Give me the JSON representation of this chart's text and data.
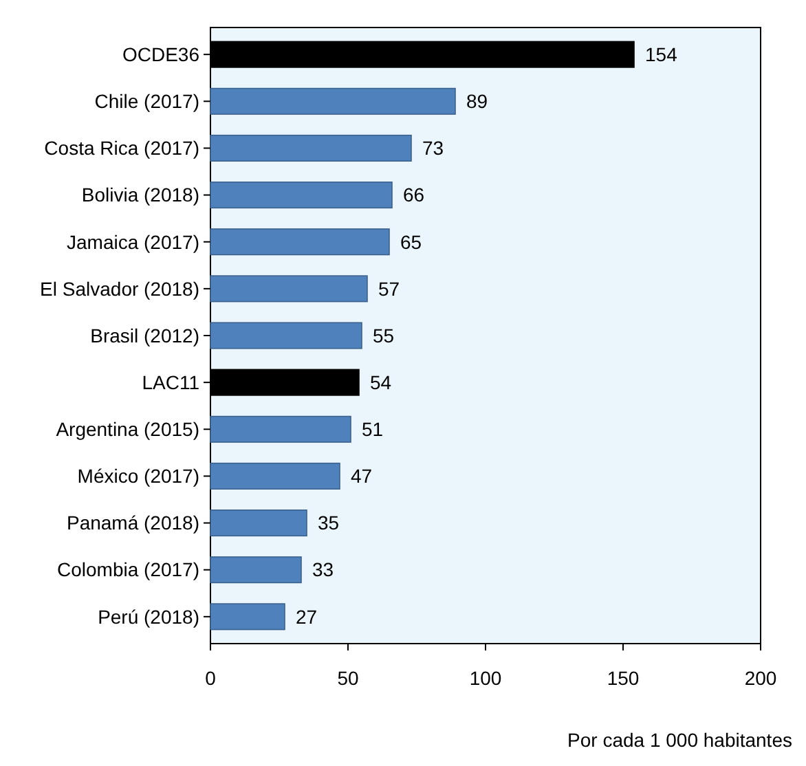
{
  "chart_data": {
    "type": "bar",
    "orientation": "horizontal",
    "xlabel": "Por cada 1 000 habitantes",
    "categories": [
      "OCDE36",
      "Chile (2017)",
      "Costa Rica (2017)",
      "Bolivia (2018)",
      "Jamaica (2017)",
      "El Salvador (2018)",
      "Brasil (2012)",
      "LAC11",
      "Argentina (2015)",
      "México (2017)",
      "Panamá (2018)",
      "Colombia (2017)",
      "Perú (2018)"
    ],
    "values": [
      154,
      89,
      73,
      66,
      65,
      57,
      55,
      54,
      51,
      47,
      35,
      33,
      27
    ],
    "colors": [
      "#000000",
      "#4f81bd",
      "#4f81bd",
      "#4f81bd",
      "#4f81bd",
      "#4f81bd",
      "#4f81bd",
      "#000000",
      "#4f81bd",
      "#4f81bd",
      "#4f81bd",
      "#4f81bd",
      "#4f81bd"
    ],
    "xlim": [
      0,
      200
    ],
    "xticks": [
      0,
      50,
      100,
      150,
      200
    ],
    "data_labels": true,
    "grid": false
  }
}
